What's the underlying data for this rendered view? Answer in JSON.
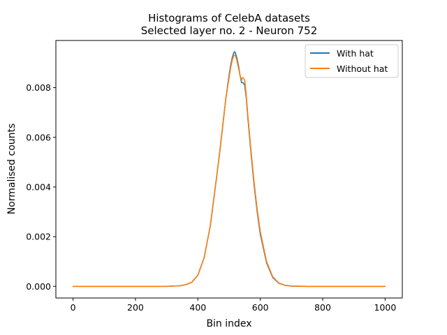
{
  "chart_data": {
    "type": "line",
    "title": "Histograms of CelebA datasets",
    "subtitle": "Selected layer no. 2 - Neuron 752",
    "xlabel": "Bin index",
    "ylabel": "Normalised counts",
    "xlim": [
      -55,
      1055
    ],
    "ylim": [
      -0.00047,
      0.0099
    ],
    "x_ticks": [
      0,
      200,
      400,
      600,
      800,
      1000
    ],
    "x_tick_labels": [
      "0",
      "200",
      "400",
      "600",
      "800",
      "1000"
    ],
    "y_ticks": [
      0.0,
      0.002,
      0.004,
      0.006,
      0.008
    ],
    "y_tick_labels": [
      "0.000",
      "0.002",
      "0.004",
      "0.006",
      "0.008"
    ],
    "grid": false,
    "legend_position": "top-right",
    "series": [
      {
        "name": "With hat",
        "color": "#1f77b4",
        "x": [
          0,
          100,
          200,
          300,
          340,
          360,
          380,
          400,
          420,
          440,
          460,
          470,
          480,
          490,
          500,
          505,
          510,
          515,
          518,
          520,
          525,
          530,
          535,
          540,
          545,
          550,
          555,
          560,
          570,
          580,
          590,
          600,
          620,
          640,
          660,
          680,
          700,
          750,
          800,
          900,
          1000
        ],
        "y": [
          0.0,
          0.0,
          0.0,
          0.0,
          2e-05,
          6e-05,
          0.00016,
          0.00045,
          0.00115,
          0.00245,
          0.0044,
          0.0054,
          0.0065,
          0.0076,
          0.0085,
          0.0089,
          0.0092,
          0.0094,
          0.00945,
          0.0094,
          0.0092,
          0.0089,
          0.0085,
          0.0082,
          0.0082,
          0.0081,
          0.0076,
          0.0068,
          0.0054,
          0.0041,
          0.003,
          0.0021,
          0.00095,
          0.00035,
          0.00012,
          4e-05,
          1e-05,
          0.0,
          0.0,
          0.0,
          0.0
        ]
      },
      {
        "name": "Without hat",
        "color": "#ff7f0e",
        "x": [
          0,
          100,
          200,
          300,
          340,
          360,
          380,
          400,
          420,
          440,
          460,
          470,
          480,
          490,
          500,
          505,
          510,
          515,
          518,
          520,
          525,
          530,
          535,
          540,
          542,
          545,
          550,
          555,
          560,
          570,
          580,
          590,
          600,
          620,
          640,
          660,
          680,
          700,
          750,
          800,
          900,
          1000
        ],
        "y": [
          0.0,
          0.0,
          0.0,
          0.0,
          2e-05,
          6e-05,
          0.00016,
          0.00045,
          0.00115,
          0.00245,
          0.0044,
          0.0054,
          0.0065,
          0.0076,
          0.0084,
          0.0088,
          0.0091,
          0.0093,
          0.0093,
          0.0093,
          0.0091,
          0.0088,
          0.0085,
          0.0083,
          0.0084,
          0.0084,
          0.0083,
          0.0077,
          0.0069,
          0.0055,
          0.0042,
          0.0031,
          0.0022,
          0.001,
          0.00038,
          0.00013,
          4e-05,
          1e-05,
          0.0,
          0.0,
          0.0,
          0.0
        ]
      }
    ]
  }
}
